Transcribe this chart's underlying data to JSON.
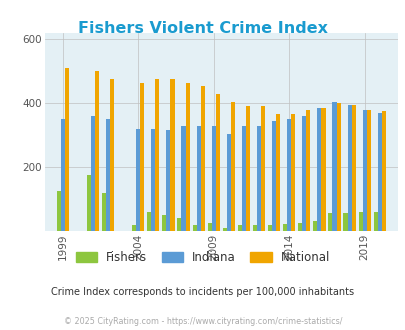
{
  "title": "Fishers Violent Crime Index",
  "title_color": "#1a9bcf",
  "subtitle": "Crime Index corresponds to incidents per 100,000 inhabitants",
  "footer": "© 2025 CityRating.com - https://www.cityrating.com/crime-statistics/",
  "years": [
    1999,
    2001,
    2002,
    2004,
    2005,
    2006,
    2007,
    2008,
    2009,
    2010,
    2011,
    2012,
    2013,
    2014,
    2015,
    2016,
    2017,
    2018,
    2019,
    2020
  ],
  "fishers": [
    125,
    175,
    120,
    20,
    60,
    50,
    40,
    20,
    25,
    8,
    20,
    20,
    20,
    22,
    25,
    30,
    55,
    55,
    60,
    60
  ],
  "indiana": [
    350,
    360,
    350,
    320,
    320,
    315,
    330,
    330,
    330,
    305,
    330,
    330,
    345,
    350,
    360,
    385,
    405,
    395,
    380,
    370
  ],
  "national": [
    510,
    500,
    475,
    465,
    475,
    475,
    465,
    455,
    430,
    405,
    390,
    390,
    365,
    365,
    380,
    385,
    400,
    395,
    380,
    375
  ],
  "fishers_color": "#8dc63f",
  "indiana_color": "#5b9bd5",
  "national_color": "#f0a500",
  "plot_bg": "#e4f0f5",
  "ylim": [
    0,
    620
  ],
  "yticks": [
    0,
    200,
    400,
    600
  ],
  "xtick_years": [
    1999,
    2004,
    2009,
    2014,
    2019
  ],
  "grid_color": "#c0c0c0",
  "legend_labels": [
    "Fishers",
    "Indiana",
    "National"
  ]
}
